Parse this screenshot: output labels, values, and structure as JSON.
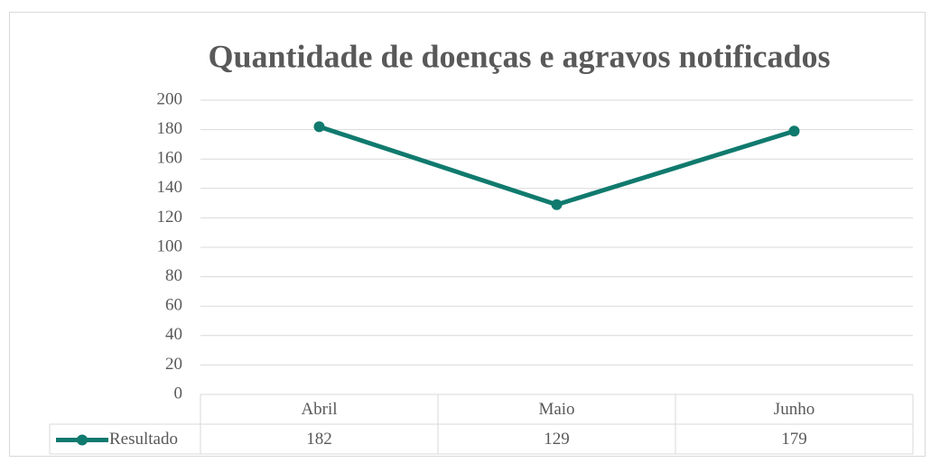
{
  "chart_data": {
    "type": "line",
    "title": "Quantidade de doenças e agravos notificados",
    "categories": [
      "Abril",
      "Maio",
      "Junho"
    ],
    "series": [
      {
        "name": "Resultado",
        "color": "#107a6e",
        "values": [
          182,
          129,
          179
        ]
      }
    ],
    "ylim": [
      0,
      200
    ],
    "yticks": [
      0,
      20,
      40,
      60,
      80,
      100,
      120,
      140,
      160,
      180,
      200
    ],
    "grid": true,
    "data_table": true
  }
}
